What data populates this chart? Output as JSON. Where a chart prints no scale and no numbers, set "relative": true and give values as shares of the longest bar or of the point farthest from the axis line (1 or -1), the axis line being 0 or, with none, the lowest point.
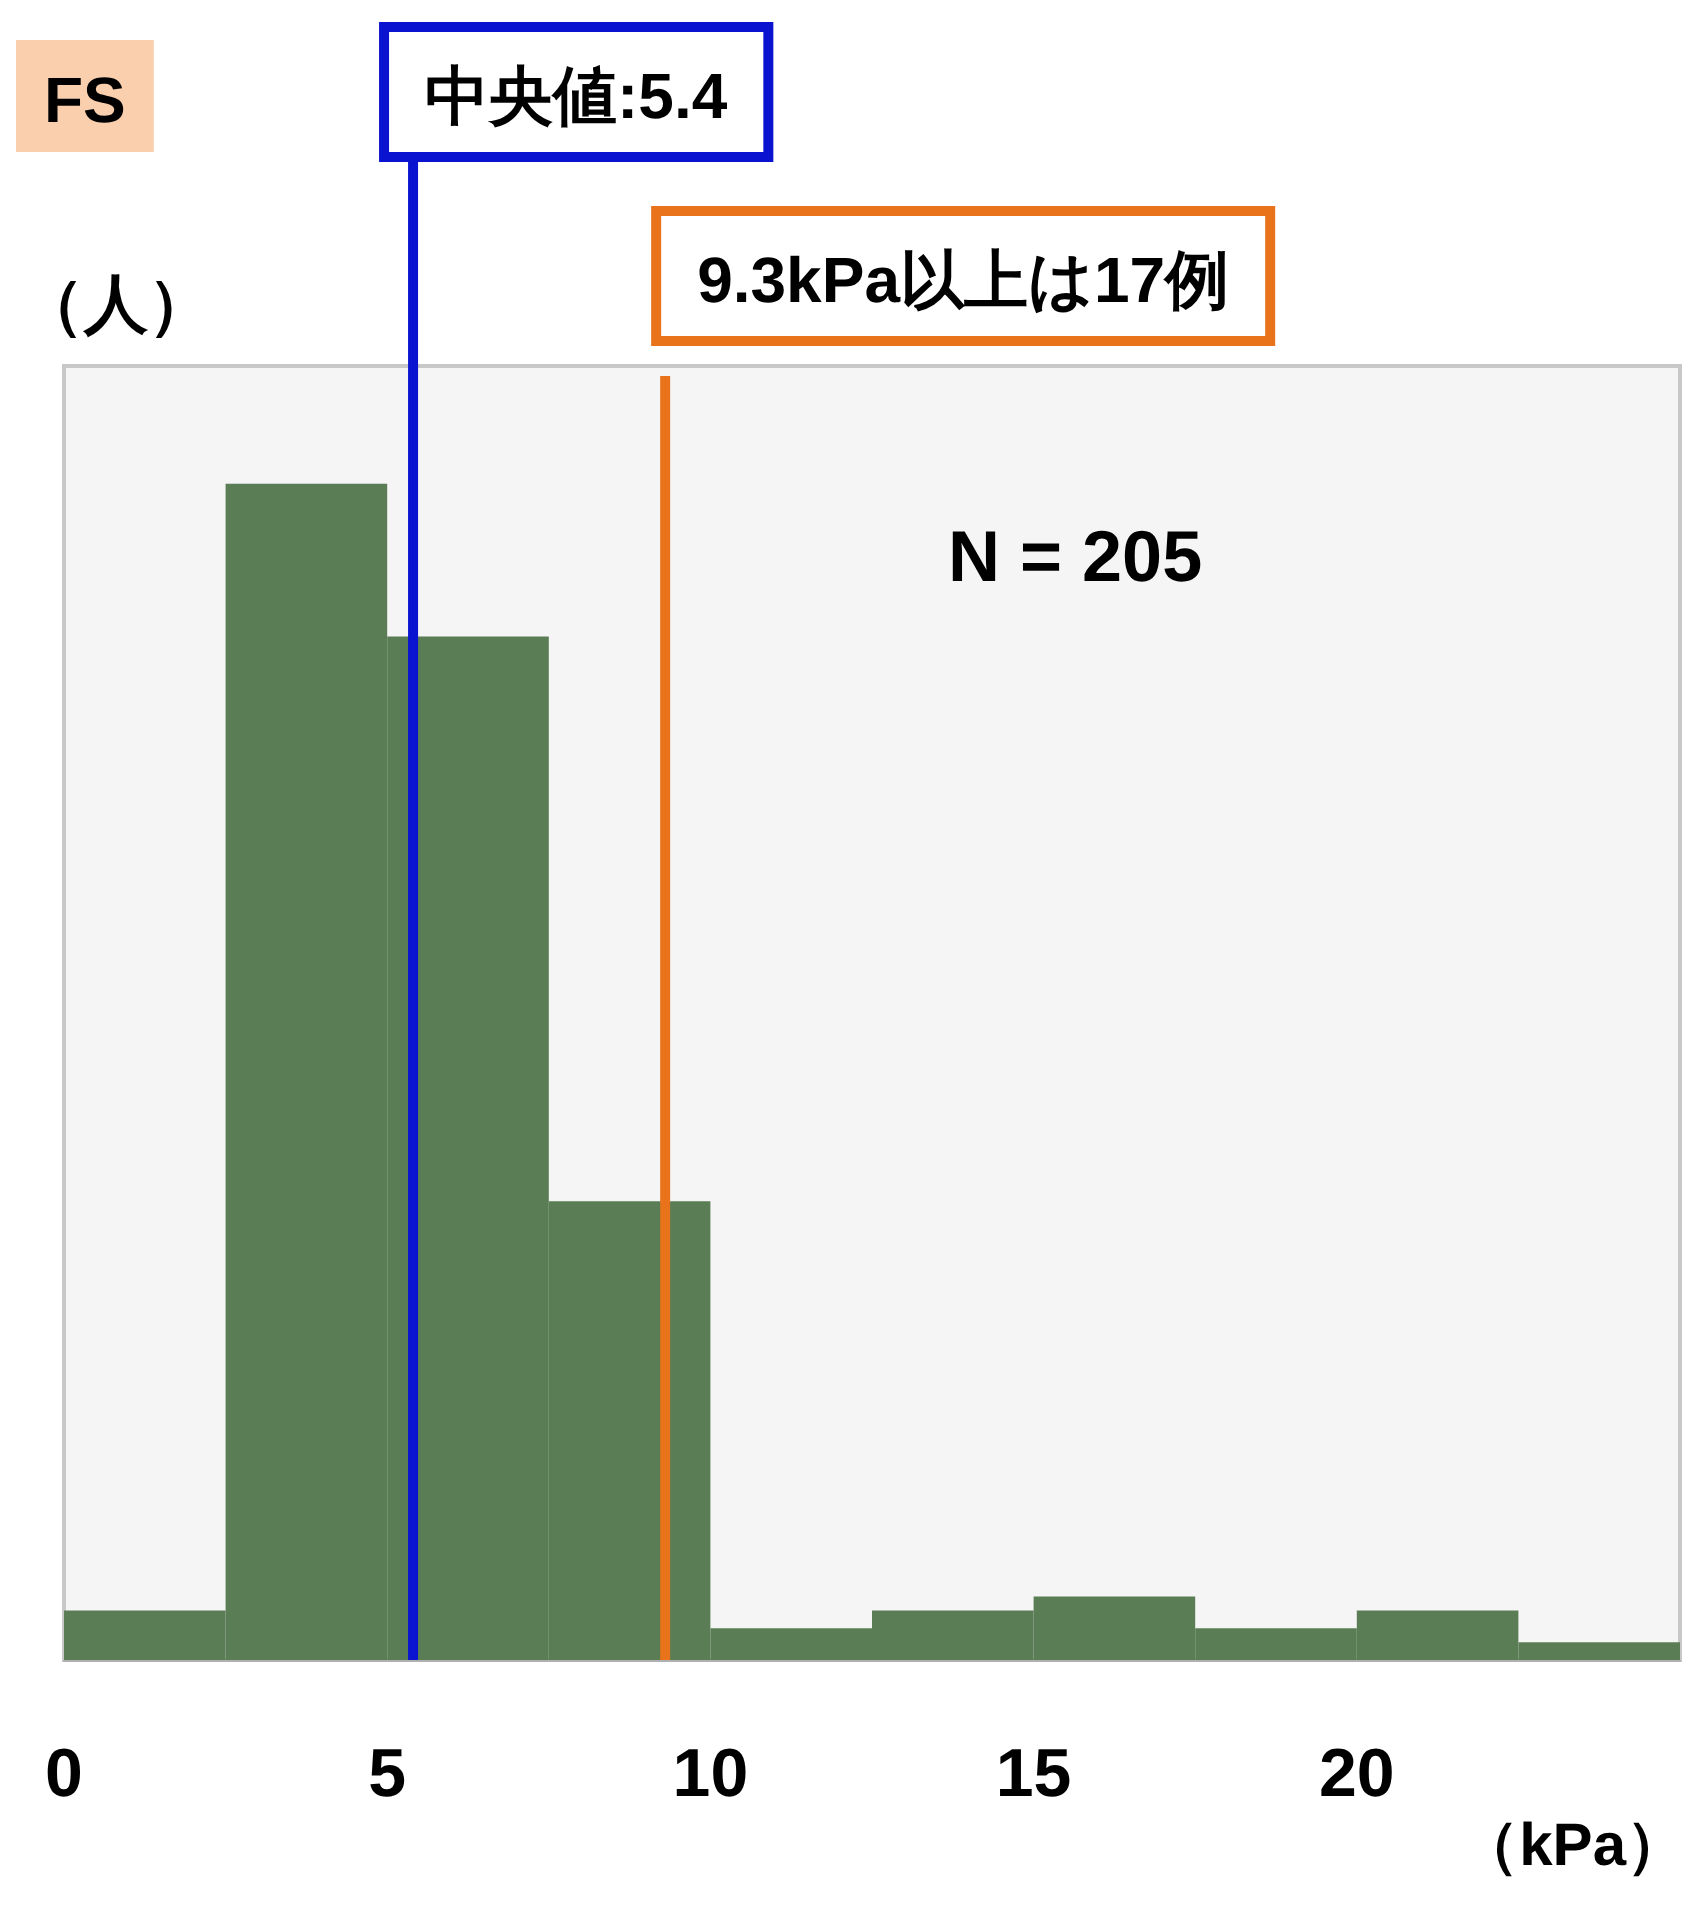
{
  "chart_data": {
    "type": "bar",
    "title": "FS",
    "xlabel": "（kPa）",
    "ylabel": "（人）",
    "x": [
      1.25,
      3.75,
      6.25,
      8.75,
      11.25,
      13.75,
      16.25,
      18.75,
      21.25,
      23.75
    ],
    "values": [
      0.042,
      1,
      0.87,
      0.39,
      0.027,
      0.042,
      0.054,
      0.027,
      0.042,
      0.015
    ],
    "relative": true,
    "color": "#5a7d55",
    "xlim": [
      0,
      25
    ],
    "xticks": [
      0,
      5,
      10,
      15,
      20
    ],
    "ref_lines": [
      {
        "axis": "x",
        "value": 5.4,
        "label": "中央値:5.4",
        "color": "#0a14d0"
      },
      {
        "axis": "x",
        "value": 9.3,
        "label": "9.3kPa以上は17例",
        "color": "#e8731a"
      }
    ],
    "annotations": [
      "N = 205"
    ]
  }
}
